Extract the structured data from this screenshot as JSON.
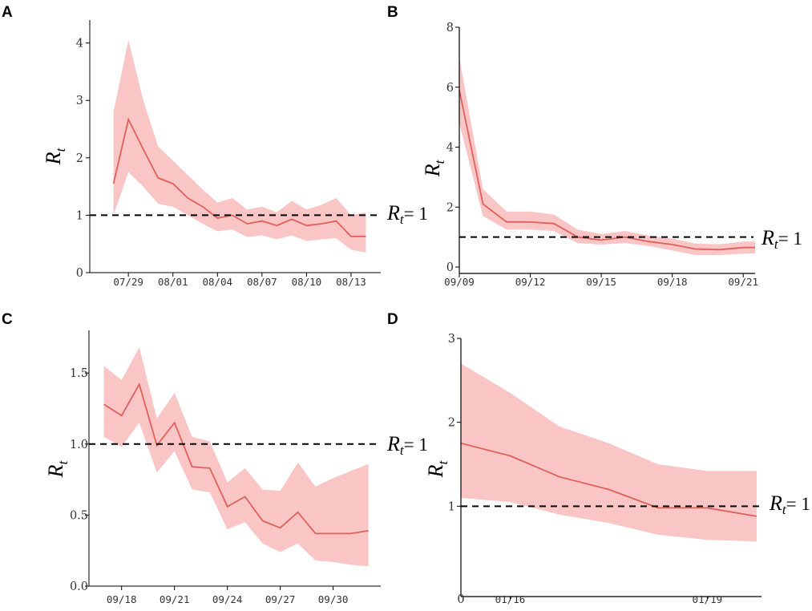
{
  "colors": {
    "line": "#e0605b",
    "band": "#f9c5c5",
    "axis": "#000000",
    "ref": "#000000"
  },
  "chart_data": [
    {
      "panel": "A",
      "type": "line",
      "ylabel": "R",
      "ylabel_sub": "t",
      "ref_label": "R",
      "ref_sub": "t",
      "ref_eq": "= 1",
      "ref_value": 1,
      "xlim": [
        -1.6,
        18.0
      ],
      "ylim": [
        0,
        4.4
      ],
      "yticks": [
        0,
        1,
        2,
        3,
        4
      ],
      "ytick_labels": [
        "0",
        "1",
        "2",
        "3",
        "4"
      ],
      "xticks": [
        1,
        4,
        7,
        10,
        13,
        16
      ],
      "xtick_labels": [
        "07/29",
        "08/01",
        "08/04",
        "08/07",
        "08/10",
        "08/13"
      ],
      "series": [
        {
          "name": "Rt",
          "x": [
            0,
            1,
            2,
            3,
            4,
            5,
            6,
            7,
            8,
            9,
            10,
            11,
            12,
            13,
            14,
            15,
            16,
            17
          ],
          "y": [
            1.55,
            2.67,
            2.15,
            1.65,
            1.55,
            1.3,
            1.15,
            0.95,
            1.0,
            0.85,
            0.9,
            0.82,
            0.93,
            0.82,
            0.85,
            0.9,
            0.63,
            0.63
          ],
          "lower": [
            1.0,
            1.75,
            1.5,
            1.2,
            1.15,
            1.0,
            0.85,
            0.72,
            0.75,
            0.62,
            0.65,
            0.58,
            0.65,
            0.55,
            0.58,
            0.6,
            0.4,
            0.35
          ],
          "upper": [
            2.8,
            4.05,
            3.0,
            2.2,
            1.95,
            1.7,
            1.45,
            1.22,
            1.3,
            1.1,
            1.15,
            1.05,
            1.25,
            1.1,
            1.18,
            1.3,
            1.0,
            1.05
          ]
        }
      ]
    },
    {
      "panel": "B",
      "type": "line",
      "ylabel": "R",
      "ylabel_sub": "t",
      "ref_label": "R",
      "ref_sub": "t",
      "ref_eq": "= 1",
      "ref_value": 1,
      "xlim": [
        0,
        12.5
      ],
      "ylim": [
        0,
        8
      ],
      "yticks": [
        0,
        2,
        4,
        6,
        8
      ],
      "ytick_labels": [
        "0",
        "2",
        "4",
        "6",
        "8"
      ],
      "xticks": [
        0,
        3,
        6,
        9,
        12
      ],
      "xtick_labels": [
        "09/09",
        "09/12",
        "09/15",
        "09/18",
        "09/21"
      ],
      "series": [
        {
          "name": "Rt",
          "x": [
            0,
            1,
            2,
            3,
            4,
            5,
            6,
            7,
            8,
            9,
            10,
            11,
            12,
            12.5
          ],
          "y": [
            5.9,
            2.1,
            1.5,
            1.5,
            1.45,
            1.0,
            0.9,
            1.0,
            0.85,
            0.75,
            0.6,
            0.58,
            0.65,
            0.65
          ],
          "lower": [
            4.8,
            1.7,
            1.25,
            1.25,
            1.2,
            0.8,
            0.75,
            0.8,
            0.7,
            0.55,
            0.4,
            0.4,
            0.45,
            0.45
          ],
          "upper": [
            7.0,
            2.6,
            1.85,
            1.85,
            1.75,
            1.25,
            1.1,
            1.2,
            1.05,
            0.95,
            0.78,
            0.76,
            0.85,
            0.85
          ]
        }
      ]
    },
    {
      "panel": "C",
      "type": "line",
      "ylabel": "R",
      "ylabel_sub": "t",
      "ref_label": "R",
      "ref_sub": "t",
      "ref_eq": "= 1",
      "ref_value": 1.0,
      "xlim": [
        -0.85,
        15.7
      ],
      "ylim": [
        0,
        1.8
      ],
      "yticks": [
        0.0,
        0.5,
        1.0,
        1.5
      ],
      "ytick_labels": [
        "0.0",
        "0.5",
        "1.0",
        "1.5"
      ],
      "xticks": [
        1,
        4,
        7,
        10,
        13
      ],
      "xtick_labels": [
        "09/18",
        "09/21",
        "09/24",
        "09/27",
        "09/30"
      ],
      "series": [
        {
          "name": "Rt",
          "x": [
            0,
            1,
            2,
            3,
            4,
            5,
            6,
            7,
            8,
            9,
            10,
            11,
            12,
            13,
            14,
            15
          ],
          "y": [
            1.28,
            1.2,
            1.42,
            0.99,
            1.15,
            0.84,
            0.83,
            0.56,
            0.63,
            0.46,
            0.41,
            0.52,
            0.37,
            0.37,
            0.37,
            0.39
          ],
          "lower": [
            1.05,
            0.98,
            1.15,
            0.8,
            0.95,
            0.68,
            0.66,
            0.4,
            0.45,
            0.3,
            0.24,
            0.3,
            0.18,
            0.17,
            0.15,
            0.14
          ],
          "upper": [
            1.55,
            1.45,
            1.68,
            1.18,
            1.36,
            1.05,
            1.02,
            0.73,
            0.83,
            0.68,
            0.67,
            0.87,
            0.7,
            0.76,
            0.81,
            0.86
          ]
        }
      ]
    },
    {
      "panel": "D",
      "type": "line",
      "ylabel": "R",
      "ylabel_sub": "t",
      "ref_label": "R",
      "ref_sub": "t",
      "ref_eq": "= 1",
      "ref_value": 1,
      "xlim": [
        0,
        6.1
      ],
      "ylim": [
        0,
        3
      ],
      "yticks": [
        1,
        2,
        3
      ],
      "ytick_labels": [
        "1",
        "2",
        "3"
      ],
      "origin_label": "0",
      "xticks": [
        1,
        5
      ],
      "xtick_labels": [
        "01/16",
        "01/19"
      ],
      "series": [
        {
          "name": "Rt",
          "x": [
            0,
            1,
            2,
            3,
            4,
            5,
            6
          ],
          "y": [
            1.75,
            1.6,
            1.35,
            1.2,
            0.98,
            0.98,
            0.88
          ],
          "lower": [
            1.1,
            1.05,
            0.9,
            0.8,
            0.66,
            0.6,
            0.58
          ],
          "upper": [
            2.7,
            2.35,
            1.95,
            1.75,
            1.5,
            1.42,
            1.42
          ]
        }
      ]
    }
  ]
}
